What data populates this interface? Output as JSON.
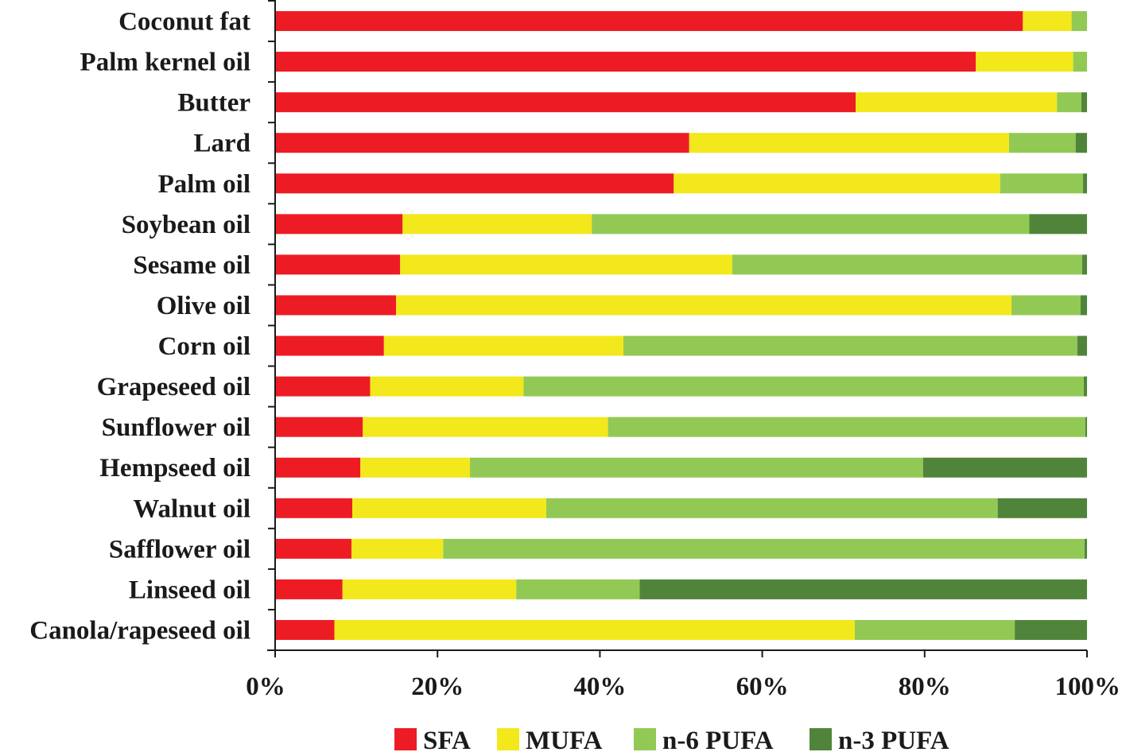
{
  "chart_data": {
    "type": "bar",
    "orientation": "horizontal",
    "stacked": "percent",
    "categories": [
      "Coconut fat",
      "Palm kernel oil",
      "Butter",
      "Lard",
      "Palm oil",
      "Soybean oil",
      "Sesame oil",
      "Olive oil",
      "Corn oil",
      "Grapeseed oil",
      "Sunflower oil",
      "Hempseed oil",
      "Walnut oil",
      "Safflower oil",
      "Linseed oil",
      "Canola/rapeseed oil"
    ],
    "series": [
      {
        "name": "SFA",
        "color": "#ed1c24",
        "values": [
          92.1,
          86.3,
          71.5,
          51.0,
          49.1,
          15.7,
          15.4,
          14.9,
          13.4,
          11.7,
          10.8,
          10.5,
          9.5,
          9.4,
          8.3,
          7.3
        ]
      },
      {
        "name": "MUFA",
        "color": "#f2e81b",
        "values": [
          6.0,
          12.0,
          24.8,
          39.4,
          40.2,
          23.3,
          40.9,
          75.8,
          29.5,
          18.9,
          30.2,
          13.5,
          23.9,
          11.3,
          21.4,
          64.1
        ]
      },
      {
        "name": "n-6 PUFA",
        "color": "#92c955",
        "values": [
          1.9,
          1.7,
          3.0,
          8.2,
          10.2,
          53.9,
          43.1,
          8.5,
          55.9,
          69.0,
          58.8,
          55.8,
          55.6,
          79.0,
          15.2,
          19.7
        ]
      },
      {
        "name": "n-3 PUFA",
        "color": "#51843b",
        "values": [
          0.0,
          0.0,
          0.7,
          1.4,
          0.5,
          7.1,
          0.6,
          0.8,
          1.2,
          0.4,
          0.2,
          20.2,
          11.0,
          0.3,
          55.1,
          8.9
        ]
      }
    ],
    "xticks": [
      "0%",
      "20%",
      "40%",
      "60%",
      "80%",
      "100%"
    ],
    "xlim": [
      0,
      100
    ],
    "title": "",
    "xlabel": "",
    "ylabel": "",
    "grid": false,
    "legend_position": "bottom"
  }
}
